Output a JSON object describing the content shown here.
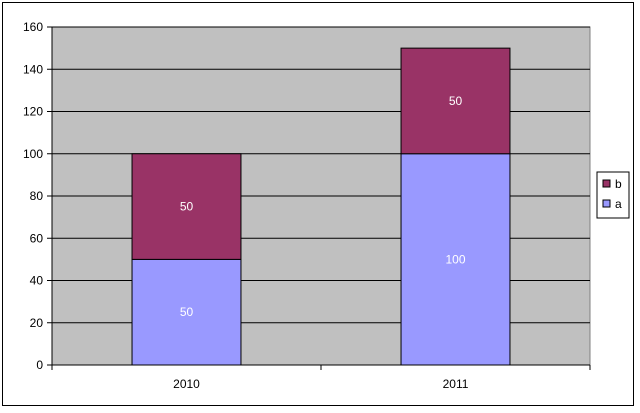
{
  "chart_data": {
    "type": "bar",
    "stacked": true,
    "categories": [
      "2010",
      "2011"
    ],
    "series": [
      {
        "name": "a",
        "values": [
          50,
          100
        ],
        "color": "#9999ff"
      },
      {
        "name": "b",
        "values": [
          50,
          50
        ],
        "color": "#993366"
      }
    ],
    "ylim": [
      0,
      160
    ],
    "yticks": [
      "0",
      "20",
      "40",
      "60",
      "80",
      "100",
      "120",
      "140",
      "160"
    ],
    "grid": true,
    "plot_background": "#c0c0c0",
    "legend_position": "right",
    "legend": [
      {
        "name": "b",
        "color": "#993366"
      },
      {
        "name": "a",
        "color": "#9999ff"
      }
    ]
  }
}
